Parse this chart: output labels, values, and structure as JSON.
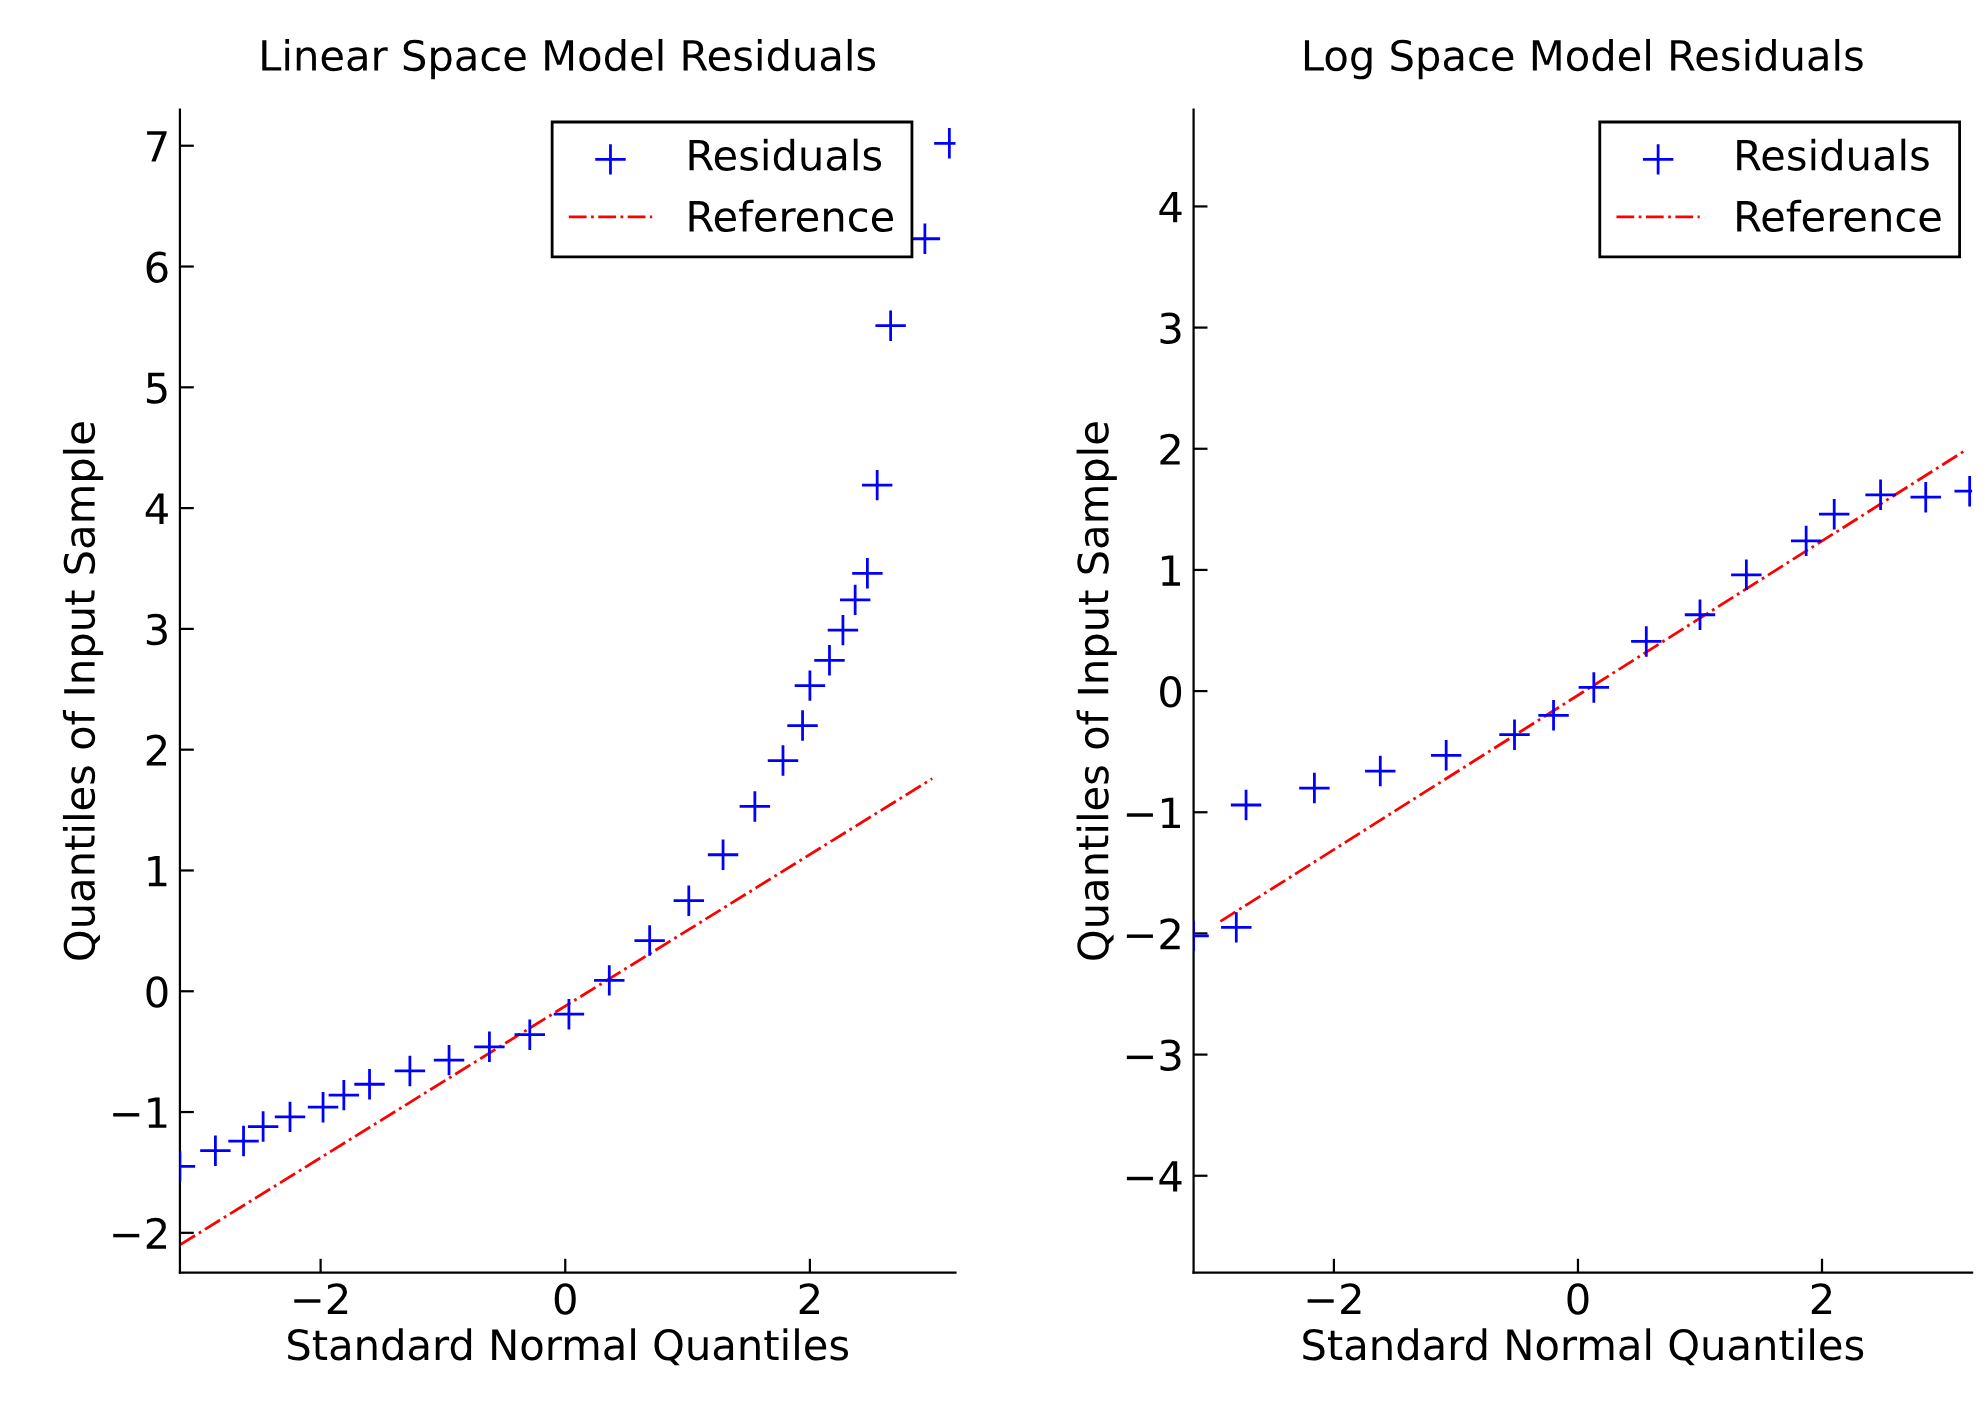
{
  "chart_data": [
    {
      "type": "scatter",
      "title": "Linear Space Model Residuals",
      "xlabel": "Standard Normal Quantiles",
      "ylabel": "Quantiles of Input Sample",
      "xlim": [
        -3.15,
        3.19
      ],
      "ylim": [
        -2.33,
        7.3
      ],
      "xticks": [
        {
          "value": -2,
          "label": "−2"
        },
        0,
        2
      ],
      "yticks": [
        {
          "value": -2,
          "label": "−2"
        },
        {
          "value": -1,
          "label": "−1"
        },
        0,
        1,
        2,
        3,
        4,
        5,
        6,
        7
      ],
      "legend": "top right",
      "grid": false,
      "series": [
        {
          "name": "Residuals",
          "color": "#0000ff",
          "marker": "cross",
          "x": [
            -3.15,
            -2.86,
            -2.63,
            -2.47,
            -2.25,
            -1.98,
            -1.81,
            -1.6,
            -1.27,
            -0.95,
            -0.62,
            -0.29,
            0.03,
            0.36,
            0.69,
            1.01,
            1.29,
            1.55,
            1.78,
            1.94,
            2.0,
            2.16,
            2.27,
            2.37,
            2.47,
            2.55,
            2.66,
            2.94,
            3.14
          ],
          "values": [
            -1.45,
            -1.32,
            -1.24,
            -1.12,
            -1.04,
            -0.96,
            -0.86,
            -0.77,
            -0.66,
            -0.57,
            -0.46,
            -0.36,
            -0.19,
            0.09,
            0.42,
            0.75,
            1.13,
            1.53,
            1.91,
            2.2,
            2.53,
            2.74,
            2.99,
            3.24,
            3.46,
            4.19,
            5.51,
            6.23,
            7.02
          ]
        },
        {
          "name": "Reference",
          "type": "line",
          "color": "#ff0000",
          "line_style": "dashdot",
          "x": [
            -3.15,
            3.0
          ],
          "values": [
            -2.1,
            1.76
          ]
        }
      ]
    },
    {
      "type": "scatter",
      "title": "Log Space Model Residuals",
      "xlabel": "Standard Normal Quantiles",
      "ylabel": "Quantiles of Input Sample",
      "xlim": [
        -3.15,
        3.23
      ],
      "ylim": [
        -4.8,
        4.8
      ],
      "xticks": [
        {
          "value": -2,
          "label": "−2"
        },
        0,
        2
      ],
      "yticks": [
        {
          "value": -4,
          "label": "−4"
        },
        {
          "value": -3,
          "label": "−3"
        },
        {
          "value": -2,
          "label": "−2"
        },
        {
          "value": -1,
          "label": "−1"
        },
        0,
        1,
        2,
        3,
        4
      ],
      "legend": "top right",
      "grid": false,
      "series": [
        {
          "name": "Residuals",
          "color": "#0000ff",
          "marker": "cross",
          "x": [
            -3.15,
            -2.8,
            -2.72,
            -2.16,
            -1.62,
            -1.08,
            -0.52,
            -0.2,
            0.13,
            0.56,
            1.0,
            1.38,
            1.87,
            2.1,
            2.48,
            2.85,
            3.21
          ],
          "values": [
            -2.02,
            -1.95,
            -0.94,
            -0.8,
            -0.66,
            -0.53,
            -0.36,
            -0.2,
            0.03,
            0.41,
            0.63,
            0.96,
            1.24,
            1.46,
            1.62,
            1.6,
            1.65
          ]
        },
        {
          "name": "Reference",
          "type": "line",
          "color": "#ff0000",
          "line_style": "dashdot",
          "x": [
            -2.93,
            3.18
          ],
          "values": [
            -1.9,
            1.99
          ]
        }
      ]
    }
  ]
}
